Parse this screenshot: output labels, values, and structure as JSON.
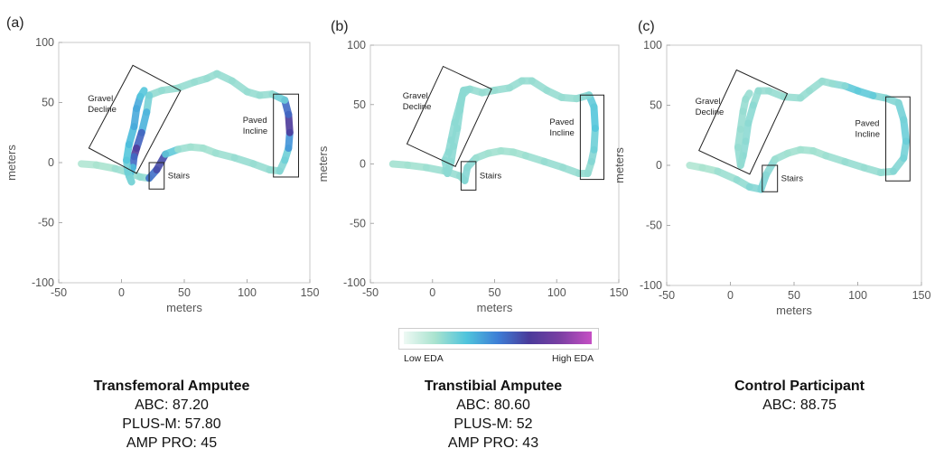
{
  "colorbar": {
    "low_label": "Low EDA",
    "high_label": "High EDA",
    "stops": [
      "#eef9f4",
      "#a9e3cf",
      "#4fc4dc",
      "#3d7ed6",
      "#4a3a9a",
      "#7b3fa3",
      "#c64fc4"
    ]
  },
  "panels": [
    {
      "letter": "(a)",
      "name": "Transfemoral Amputee",
      "metrics": [
        "ABC: 87.20",
        "PLUS-M: 57.80",
        "AMP PRO: 45"
      ]
    },
    {
      "letter": "(b)",
      "name": "Transtibial Amputee",
      "metrics": [
        "ABC: 80.60",
        "PLUS-M: 52",
        "AMP PRO: 43"
      ]
    },
    {
      "letter": "(c)",
      "name": "Control Participant",
      "metrics": [
        "ABC: 88.75"
      ]
    }
  ],
  "chart_data": [
    {
      "type": "scatter",
      "panel": "(a)",
      "xlabel": "meters",
      "ylabel": "meters",
      "xlim": [
        -50,
        150
      ],
      "ylim": [
        -100,
        100
      ],
      "xticks": [
        -50,
        0,
        50,
        100,
        150
      ],
      "yticks": [
        -100,
        -50,
        0,
        50,
        100
      ],
      "path": [
        [
          -32,
          -1
        ],
        [
          -20,
          -2
        ],
        [
          -5,
          -5
        ],
        [
          5,
          -8
        ],
        [
          15,
          -12
        ],
        [
          22,
          -13
        ],
        [
          28,
          -6
        ],
        [
          35,
          7
        ],
        [
          45,
          11
        ],
        [
          55,
          13
        ],
        [
          65,
          12
        ],
        [
          75,
          8
        ],
        [
          90,
          4
        ],
        [
          105,
          -1
        ],
        [
          118,
          -6
        ],
        [
          126,
          -7
        ],
        [
          130,
          2
        ],
        [
          133,
          12
        ],
        [
          134,
          25
        ],
        [
          133,
          40
        ],
        [
          130,
          52
        ],
        [
          120,
          57
        ],
        [
          110,
          56
        ],
        [
          100,
          59
        ],
        [
          88,
          68
        ],
        [
          76,
          74
        ],
        [
          68,
          70
        ],
        [
          58,
          67
        ],
        [
          45,
          62
        ],
        [
          32,
          60
        ],
        [
          22,
          56
        ],
        [
          20,
          42
        ],
        [
          16,
          25
        ],
        [
          12,
          12
        ],
        [
          10,
          5
        ],
        [
          9,
          -4
        ],
        [
          6,
          -11
        ],
        [
          8,
          -16
        ],
        [
          5,
          -8
        ],
        [
          4,
          2
        ],
        [
          6,
          15
        ],
        [
          10,
          30
        ],
        [
          12,
          45
        ],
        [
          15,
          55
        ],
        [
          18,
          60
        ]
      ],
      "eda": [
        0.15,
        0.15,
        0.18,
        0.2,
        0.2,
        0.22,
        0.85,
        0.4,
        0.2,
        0.18,
        0.18,
        0.18,
        0.2,
        0.2,
        0.2,
        0.22,
        0.25,
        0.3,
        0.6,
        0.75,
        0.35,
        0.2,
        0.2,
        0.2,
        0.2,
        0.2,
        0.2,
        0.2,
        0.2,
        0.2,
        0.22,
        0.3,
        0.45,
        0.68,
        0.7,
        0.4,
        0.3,
        0.25,
        0.25,
        0.3,
        0.35,
        0.35,
        0.45,
        0.35,
        0.3
      ],
      "regions": [
        {
          "label": [
            "Gravel",
            "Decline"
          ],
          "x": [
            -11,
            32
          ],
          "y": [
            -3,
            75
          ],
          "tilt": 28
        },
        {
          "label": [
            "Paved",
            "Incline"
          ],
          "x": [
            121,
            141
          ],
          "y": [
            -12,
            57
          ],
          "tilt": 0
        },
        {
          "label": [
            "Stairs"
          ],
          "x": [
            22,
            34
          ],
          "y": [
            -22,
            0
          ],
          "tilt": 0
        }
      ]
    },
    {
      "type": "scatter",
      "panel": "(b)",
      "xlabel": "meters",
      "ylabel": "meters",
      "xlim": [
        -50,
        150
      ],
      "ylim": [
        -100,
        100
      ],
      "xticks": [
        -50,
        0,
        50,
        100,
        150
      ],
      "yticks": [
        -100,
        -50,
        0,
        50,
        100
      ],
      "path": [
        [
          -32,
          0
        ],
        [
          -20,
          -1
        ],
        [
          -5,
          -3
        ],
        [
          10,
          -6
        ],
        [
          22,
          -10
        ],
        [
          26,
          -14
        ],
        [
          28,
          -3
        ],
        [
          35,
          5
        ],
        [
          45,
          9
        ],
        [
          55,
          11
        ],
        [
          65,
          10
        ],
        [
          75,
          7
        ],
        [
          90,
          2
        ],
        [
          105,
          -3
        ],
        [
          118,
          -8
        ],
        [
          125,
          -8
        ],
        [
          128,
          2
        ],
        [
          130,
          12
        ],
        [
          131,
          30
        ],
        [
          130,
          48
        ],
        [
          126,
          58
        ],
        [
          116,
          55
        ],
        [
          104,
          56
        ],
        [
          92,
          62
        ],
        [
          80,
          70
        ],
        [
          72,
          70
        ],
        [
          62,
          64
        ],
        [
          50,
          62
        ],
        [
          40,
          60
        ],
        [
          30,
          63
        ],
        [
          25,
          62
        ],
        [
          22,
          50
        ],
        [
          18,
          35
        ],
        [
          15,
          20
        ],
        [
          13,
          10
        ],
        [
          10,
          3
        ],
        [
          12,
          -8
        ],
        [
          15,
          2
        ],
        [
          17,
          15
        ],
        [
          20,
          30
        ],
        [
          22,
          45
        ],
        [
          24,
          58
        ],
        [
          28,
          62
        ]
      ],
      "eda": [
        0.18,
        0.18,
        0.18,
        0.2,
        0.2,
        0.22,
        0.25,
        0.2,
        0.18,
        0.18,
        0.18,
        0.18,
        0.2,
        0.2,
        0.2,
        0.2,
        0.22,
        0.25,
        0.3,
        0.35,
        0.25,
        0.2,
        0.2,
        0.2,
        0.2,
        0.2,
        0.2,
        0.2,
        0.2,
        0.2,
        0.22,
        0.22,
        0.22,
        0.22,
        0.22,
        0.22,
        0.22,
        0.22,
        0.22,
        0.22,
        0.22,
        0.22,
        0.22
      ],
      "regions": [
        {
          "label": [
            "Gravel",
            "Decline"
          ],
          "x": [
            -8,
            35
          ],
          "y": [
            4,
            76
          ],
          "tilt": 25
        },
        {
          "label": [
            "Paved",
            "Incline"
          ],
          "x": [
            119,
            138
          ],
          "y": [
            -13,
            58
          ],
          "tilt": 0
        },
        {
          "label": [
            "Stairs"
          ],
          "x": [
            23,
            35
          ],
          "y": [
            -22,
            2
          ],
          "tilt": 0
        }
      ]
    },
    {
      "type": "scatter",
      "panel": "(c)",
      "xlabel": "meters",
      "ylabel": "meters",
      "xlim": [
        -50,
        150
      ],
      "ylim": [
        -100,
        100
      ],
      "xticks": [
        -50,
        0,
        50,
        100,
        150
      ],
      "yticks": [
        -100,
        -50,
        0,
        50,
        100
      ],
      "path": [
        [
          -32,
          0
        ],
        [
          -22,
          -2
        ],
        [
          -10,
          -5
        ],
        [
          5,
          -12
        ],
        [
          15,
          -18
        ],
        [
          24,
          -20
        ],
        [
          28,
          -8
        ],
        [
          35,
          5
        ],
        [
          45,
          10
        ],
        [
          55,
          13
        ],
        [
          65,
          12
        ],
        [
          75,
          8
        ],
        [
          90,
          3
        ],
        [
          105,
          -2
        ],
        [
          118,
          -6
        ],
        [
          128,
          -5
        ],
        [
          136,
          6
        ],
        [
          138,
          20
        ],
        [
          136,
          38
        ],
        [
          132,
          52
        ],
        [
          122,
          56
        ],
        [
          112,
          58
        ],
        [
          100,
          62
        ],
        [
          90,
          66
        ],
        [
          80,
          68
        ],
        [
          72,
          70
        ],
        [
          62,
          62
        ],
        [
          55,
          56
        ],
        [
          42,
          57
        ],
        [
          30,
          62
        ],
        [
          22,
          62
        ],
        [
          18,
          50
        ],
        [
          14,
          35
        ],
        [
          12,
          20
        ],
        [
          10,
          8
        ],
        [
          8,
          0
        ],
        [
          6,
          15
        ],
        [
          8,
          30
        ],
        [
          10,
          45
        ],
        [
          12,
          55
        ],
        [
          15,
          60
        ]
      ],
      "eda": [
        0.15,
        0.15,
        0.18,
        0.2,
        0.22,
        0.25,
        0.25,
        0.2,
        0.18,
        0.18,
        0.18,
        0.18,
        0.2,
        0.2,
        0.2,
        0.22,
        0.25,
        0.28,
        0.28,
        0.25,
        0.22,
        0.25,
        0.35,
        0.25,
        0.2,
        0.2,
        0.2,
        0.2,
        0.2,
        0.2,
        0.2,
        0.22,
        0.22,
        0.22,
        0.22,
        0.22,
        0.2,
        0.2,
        0.2,
        0.2,
        0.2
      ],
      "regions": [
        {
          "label": [
            "Gravel",
            "Decline"
          ],
          "x": [
            -12,
            32
          ],
          "y": [
            -1,
            73
          ],
          "tilt": 25
        },
        {
          "label": [
            "Paved",
            "Incline"
          ],
          "x": [
            122,
            141
          ],
          "y": [
            -13,
            57
          ],
          "tilt": 0
        },
        {
          "label": [
            "Stairs"
          ],
          "x": [
            25,
            37
          ],
          "y": [
            -22,
            0
          ],
          "tilt": 0
        }
      ]
    }
  ]
}
